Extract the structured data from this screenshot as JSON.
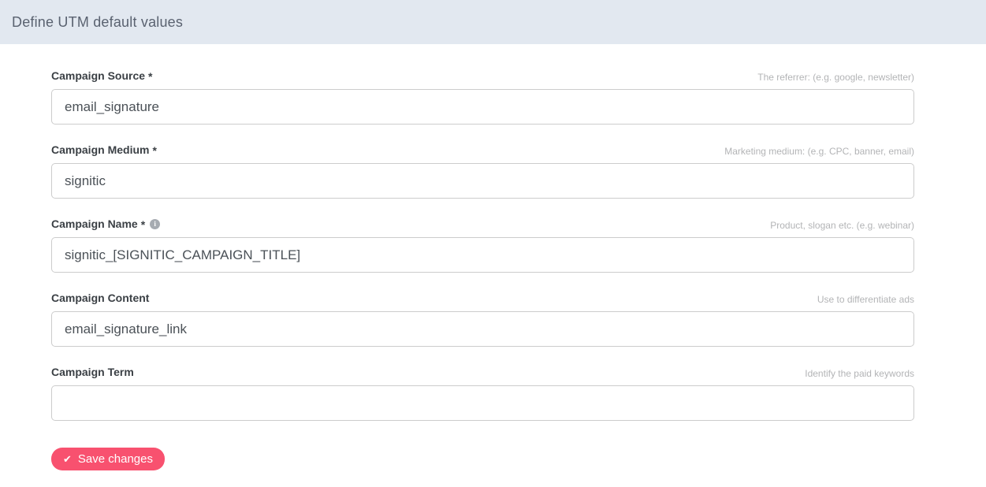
{
  "header": {
    "title": "Define UTM default values"
  },
  "colors": {
    "header_bg": "#e2e8f0",
    "accent_button": "#f8516f",
    "input_border": "#cccccc",
    "hint_text": "#b3b4b6"
  },
  "required_marker": "*",
  "info_icon": {
    "glyph": "i"
  },
  "fields": [
    {
      "label": "Campaign Source",
      "required": true,
      "hint": "The referrer: (e.g. google, newsletter)",
      "value": "email_signature"
    },
    {
      "label": "Campaign Medium",
      "required": true,
      "hint": "Marketing medium: (e.g. CPC, banner, email)",
      "value": "signitic"
    },
    {
      "label": "Campaign Name",
      "required": true,
      "has_info_icon": true,
      "hint": "Product, slogan etc. (e.g. webinar)",
      "value": "signitic_[SIGNITIC_CAMPAIGN_TITLE]"
    },
    {
      "label": "Campaign Content",
      "required": false,
      "hint": "Use to differentiate ads",
      "value": "email_signature_link"
    },
    {
      "label": "Campaign Term",
      "required": false,
      "hint": "Identify the paid keywords",
      "value": ""
    }
  ],
  "save_button": {
    "label": "Save changes",
    "icon_glyph": "✔"
  }
}
